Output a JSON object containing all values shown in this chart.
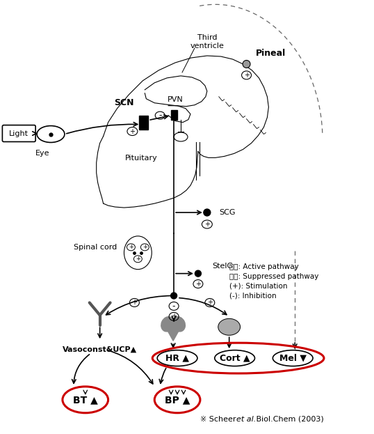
{
  "figsize": [
    5.38,
    6.23
  ],
  "dpi": 100,
  "labels": {
    "light": "Light",
    "eye": "Eye",
    "scn": "SCN",
    "pvn": "PVN",
    "third_ventricle": "Third\nventricle",
    "pineal": "Pineal",
    "pituitary": "Pituitary",
    "scg": "SCG",
    "stelg": "StelG",
    "spinal_cord": "Spinal cord",
    "vasoconst": "Vasoconst&UCP▲",
    "hr": "HR ▲",
    "cort": "Cort ▲",
    "mel": "Mel ▼",
    "bt": "BT ▲",
    "bp": "BP ▲",
    "legend1": "실선: Active pathway",
    "legend2": "점선: Suppressed pathway",
    "legend3": "(+): Stimulation",
    "legend4": "(-): Inhibition",
    "citation_prefix": "※ Scheer ",
    "citation_italic": "et al.",
    "citation_suffix": " Biol.Chem (2003)"
  },
  "colors": {
    "black": "#000000",
    "red": "#cc0000",
    "gray_dark": "#555555",
    "gray_mid": "#888888",
    "gray_light": "#bbbbbb",
    "bg": "#ffffff"
  }
}
